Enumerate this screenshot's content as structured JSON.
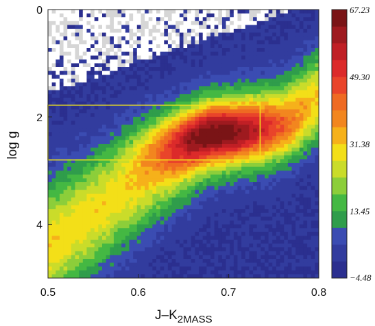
{
  "chart_data": {
    "type": "heatmap",
    "title": "",
    "xlabel_main": "J–K",
    "xlabel_sub": "2MASS",
    "ylabel": "log g",
    "xlim": [
      0.5,
      0.8
    ],
    "ylim": [
      0,
      5
    ],
    "y_inverted": true,
    "x_ticks": [
      "0.5",
      "0.6",
      "0.7",
      "0.8"
    ],
    "y_ticks": [
      "0",
      "2",
      "4"
    ],
    "colorbar": {
      "labels": [
        "67.23",
        "49.30",
        "31.38",
        "13.45",
        "−4.48"
      ],
      "vmin": -4.48,
      "vmax": 67.23,
      "colors": [
        "#2b2f8f",
        "#323c9e",
        "#3b4cb2",
        "#2f9d4b",
        "#44b843",
        "#8cce3a",
        "#cadc2a",
        "#f3df18",
        "#f6b11a",
        "#f2861f",
        "#ef6a22",
        "#e9442a",
        "#dc2a2a",
        "#c01f25",
        "#9e1a1f",
        "#7a1416"
      ]
    },
    "selection_box": {
      "x_range": [
        0.5,
        0.735
      ],
      "logg_range": [
        1.78,
        2.8
      ],
      "color": "#f2e41a"
    },
    "density_ridge": {
      "description_points": [
        [
          0.5,
          4.4
        ],
        [
          0.6,
          3.2
        ],
        [
          0.68,
          2.35
        ],
        [
          0.76,
          2.1
        ],
        [
          0.8,
          1.6
        ]
      ],
      "peak": [
        0.68,
        2.3
      ]
    }
  }
}
